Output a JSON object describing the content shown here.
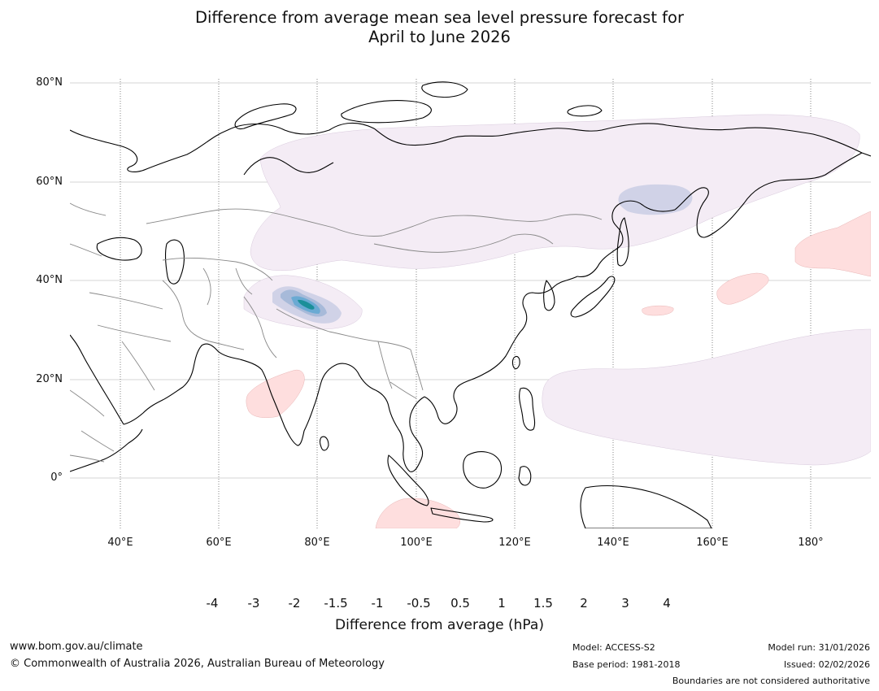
{
  "title": {
    "line1": "Difference from average mean sea level pressure forecast for",
    "line2": "April to June 2026"
  },
  "map": {
    "region": "Asia",
    "lat_labels": [
      "80°N",
      "60°N",
      "40°N",
      "20°N",
      "0°"
    ],
    "lon_labels": [
      "40°E",
      "60°E",
      "80°E",
      "100°E",
      "120°E",
      "140°E",
      "160°E",
      "180°"
    ]
  },
  "colorbar": {
    "title": "Difference from average (hPa)",
    "ticks": [
      "-4",
      "-3",
      "-2",
      "-1.5",
      "-1",
      "-0.5",
      "0.5",
      "1",
      "1.5",
      "2",
      "3",
      "4"
    ],
    "colors": {
      "under": "#0c6e60",
      "bins": [
        "#1b8f99",
        "#6aaad3",
        "#a7bad9",
        "#d0d2e7",
        "#f4ecf5",
        "#ffffff",
        "#fedede",
        "#f8a0b8",
        "#d8349b",
        "#ac0a7f",
        "#7c0679"
      ],
      "over": "#4b0468"
    }
  },
  "footer": {
    "url": "www.bom.gov.au/climate",
    "copyright": "© Commonwealth of Australia 2026, Australian Bureau of Meteorology",
    "model": "Model: ACCESS-S2",
    "base_period": "Base period: 1981-2018",
    "model_run": "Model run: 31/01/2026",
    "issued": "Issued: 02/02/2026",
    "disclaimer": "Boundaries are not considered authoritative"
  }
}
